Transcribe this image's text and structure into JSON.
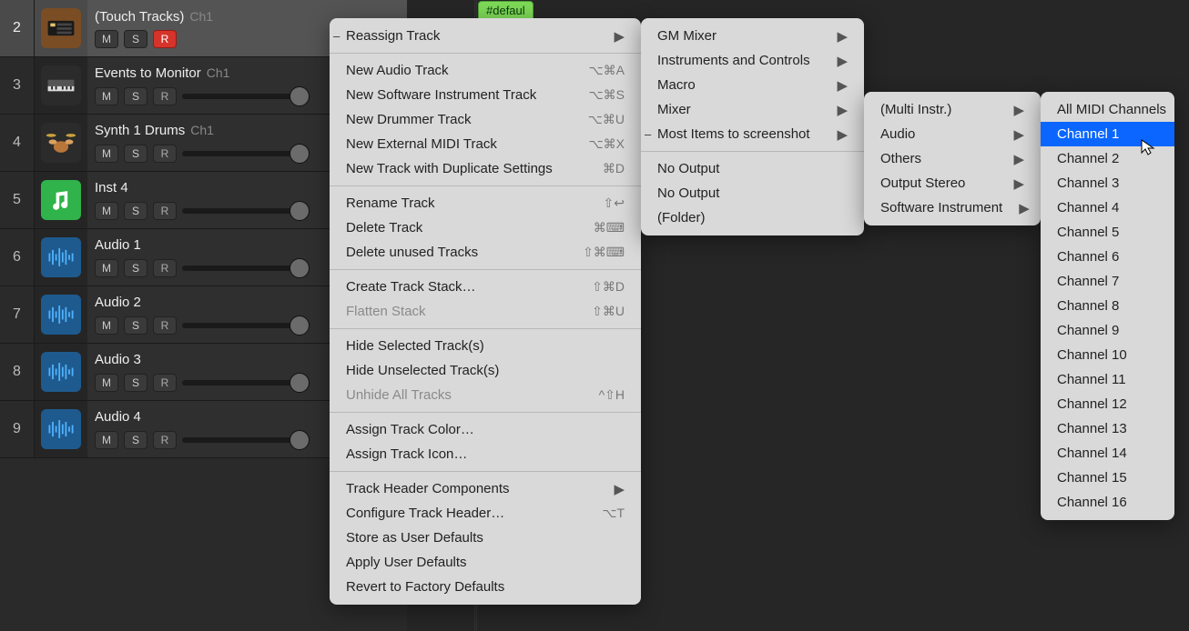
{
  "colors": {
    "bg": "#1c1c1c",
    "panel": "#2a2a2a",
    "menu_bg": "#d9d9d9",
    "highlight": "#0a66ff",
    "record_on": "#d6332a",
    "region_tag": "#7ed957"
  },
  "region_tag": "#defaul",
  "tracks": [
    {
      "num": "2",
      "name": "(Touch Tracks)",
      "channel": "Ch1",
      "selected": true,
      "icon": "touch-tracks",
      "icon_bg": "#7a4d25",
      "record_armed": true
    },
    {
      "num": "3",
      "name": "Events to Monitor",
      "channel": "Ch1",
      "selected": false,
      "icon": "keyboard",
      "icon_bg": "#2b2b2b",
      "record_armed": false
    },
    {
      "num": "4",
      "name": "Synth 1 Drums",
      "channel": "Ch1",
      "selected": false,
      "icon": "drums",
      "icon_bg": "#2b2b2b",
      "record_armed": false
    },
    {
      "num": "5",
      "name": "Inst 4",
      "channel": "",
      "selected": false,
      "icon": "music-note",
      "icon_bg": "#2fb34a",
      "record_armed": false
    },
    {
      "num": "6",
      "name": "Audio 1",
      "channel": "",
      "selected": false,
      "icon": "waveform",
      "icon_bg": "#1e5a8e",
      "record_armed": false
    },
    {
      "num": "7",
      "name": "Audio 2",
      "channel": "",
      "selected": false,
      "icon": "waveform",
      "icon_bg": "#1e5a8e",
      "record_armed": false
    },
    {
      "num": "8",
      "name": "Audio 3",
      "channel": "",
      "selected": false,
      "icon": "waveform",
      "icon_bg": "#1e5a8e",
      "record_armed": false
    },
    {
      "num": "9",
      "name": "Audio 4",
      "channel": "",
      "selected": false,
      "icon": "waveform",
      "icon_bg": "#1e5a8e",
      "record_armed": false
    }
  ],
  "track_buttons": {
    "mute": "M",
    "solo": "S",
    "record": "R"
  },
  "menu1": {
    "groups": [
      [
        {
          "label": "Reassign Track",
          "submenu": true,
          "ticked": true
        }
      ],
      [
        {
          "label": "New Audio Track",
          "shortcut": "⌥⌘A"
        },
        {
          "label": "New Software Instrument Track",
          "shortcut": "⌥⌘S"
        },
        {
          "label": "New Drummer Track",
          "shortcut": "⌥⌘U"
        },
        {
          "label": "New External MIDI Track",
          "shortcut": "⌥⌘X"
        },
        {
          "label": "New Track with Duplicate Settings",
          "shortcut": "⌘D"
        }
      ],
      [
        {
          "label": "Rename Track",
          "shortcut": "⇧↩"
        },
        {
          "label": "Delete Track",
          "shortcut": "⌘⌨"
        },
        {
          "label": "Delete unused Tracks",
          "shortcut": "⇧⌘⌨"
        }
      ],
      [
        {
          "label": "Create Track Stack…",
          "shortcut": "⇧⌘D"
        },
        {
          "label": "Flatten Stack",
          "shortcut": "⇧⌘U",
          "disabled": true
        }
      ],
      [
        {
          "label": "Hide Selected Track(s)"
        },
        {
          "label": "Hide Unselected Track(s)"
        },
        {
          "label": "Unhide All Tracks",
          "shortcut": "^⇧H",
          "disabled": true
        }
      ],
      [
        {
          "label": "Assign Track Color…"
        },
        {
          "label": "Assign Track Icon…"
        }
      ],
      [
        {
          "label": "Track Header Components",
          "submenu": true
        },
        {
          "label": "Configure Track Header…",
          "shortcut": "⌥T"
        },
        {
          "label": "Store as User Defaults"
        },
        {
          "label": "Apply User Defaults"
        },
        {
          "label": "Revert to Factory Defaults"
        }
      ]
    ]
  },
  "menu2": {
    "groups": [
      [
        {
          "label": "GM Mixer",
          "submenu": true
        },
        {
          "label": "Instruments and Controls",
          "submenu": true
        },
        {
          "label": "Macro",
          "submenu": true
        },
        {
          "label": "Mixer",
          "submenu": true
        },
        {
          "label": "Most Items to screenshot",
          "submenu": true,
          "ticked": true
        }
      ],
      [
        {
          "label": "No Output"
        },
        {
          "label": "No Output"
        },
        {
          "label": "(Folder)"
        }
      ]
    ]
  },
  "menu3": {
    "items": [
      {
        "label": "(Multi Instr.)",
        "submenu": true
      },
      {
        "label": "Audio",
        "submenu": true
      },
      {
        "label": "Others",
        "submenu": true
      },
      {
        "label": "Output Stereo",
        "submenu": true
      },
      {
        "label": "Software Instrument",
        "submenu": true
      }
    ]
  },
  "menu4": {
    "items": [
      {
        "label": "All MIDI Channels"
      },
      {
        "label": "Channel  1",
        "highlight": true
      },
      {
        "label": "Channel  2"
      },
      {
        "label": "Channel  3"
      },
      {
        "label": "Channel  4"
      },
      {
        "label": "Channel  5"
      },
      {
        "label": "Channel  6"
      },
      {
        "label": "Channel  7"
      },
      {
        "label": "Channel  8"
      },
      {
        "label": "Channel  9"
      },
      {
        "label": "Channel 10"
      },
      {
        "label": "Channel 11"
      },
      {
        "label": "Channel 12"
      },
      {
        "label": "Channel 13"
      },
      {
        "label": "Channel 14"
      },
      {
        "label": "Channel 15"
      },
      {
        "label": "Channel 16"
      }
    ]
  }
}
